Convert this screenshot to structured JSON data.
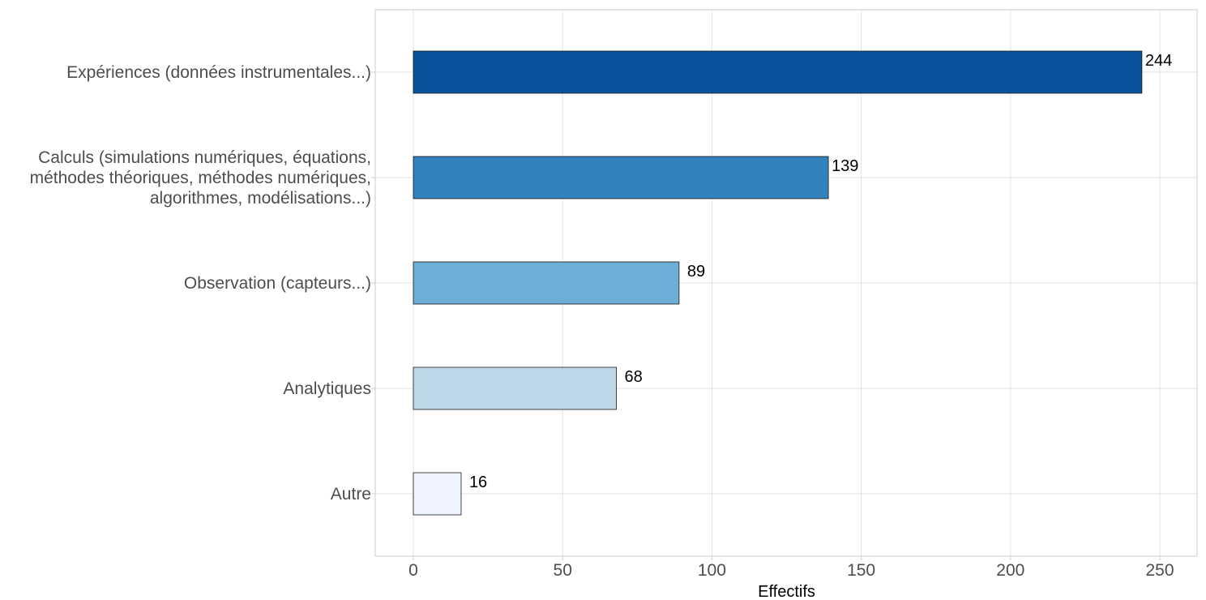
{
  "chart_data": {
    "type": "bar",
    "orientation": "horizontal",
    "categories": [
      "Expériences (données instrumentales...)",
      "Calculs (simulations numériques, équations,\nméthodes théoriques, méthodes numériques,\nalgorithmes, modélisations...)",
      "Observation (capteurs...)",
      "Analytiques",
      "Autre"
    ],
    "values": [
      244,
      139,
      89,
      68,
      16
    ],
    "value_labels": [
      "244",
      "139",
      "89",
      "68",
      "16"
    ],
    "colors": [
      "#08529c",
      "#3182bd",
      "#6baed6",
      "#bdd7e7",
      "#eff3ff"
    ],
    "xlabel": "Effectifs",
    "ylabel": "",
    "title": "",
    "xlim": [
      0,
      250
    ],
    "x_ticks": [
      0,
      50,
      100,
      150,
      200,
      250
    ],
    "x_tick_labels": [
      "0",
      "50",
      "100",
      "150",
      "200",
      "250"
    ],
    "grid": true,
    "legend": "none"
  }
}
